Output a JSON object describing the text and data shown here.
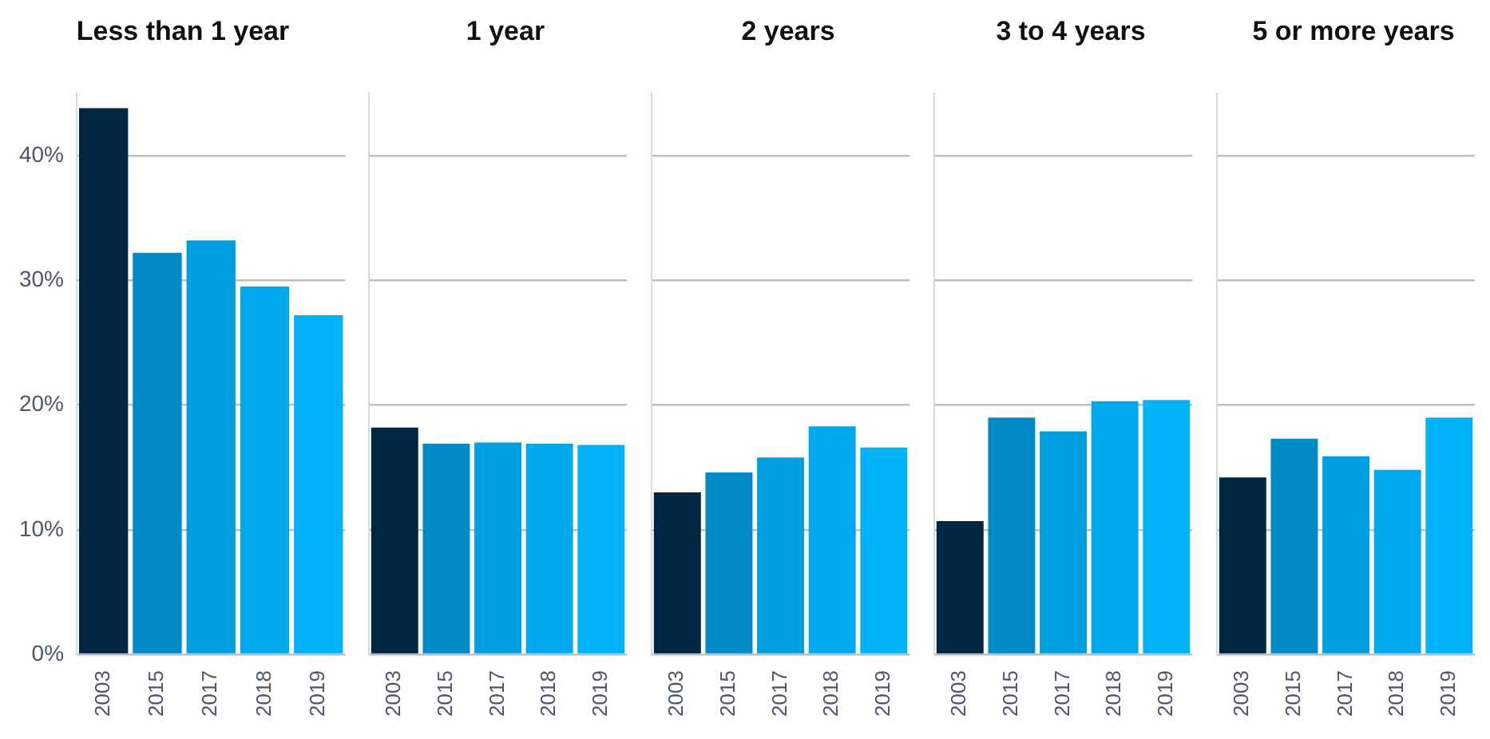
{
  "chart_data": [
    {
      "type": "bar",
      "title": "Less than 1 year",
      "categories": [
        "2003",
        "2015",
        "2017",
        "2018",
        "2019"
      ],
      "values": [
        43.8,
        32.2,
        33.2,
        29.5,
        27.2
      ],
      "colors": [
        "#002642",
        "#008bc7",
        "#00a0e0",
        "#00a8ee",
        "#00b2f8"
      ],
      "ylim": [
        0,
        45
      ],
      "yticks": [
        {
          "value": 0,
          "label": "0%"
        },
        {
          "value": 10,
          "label": "10%"
        },
        {
          "value": 20,
          "label": "20%"
        },
        {
          "value": 30,
          "label": "30%"
        },
        {
          "value": 40,
          "label": "40%"
        }
      ],
      "grid": "y"
    },
    {
      "type": "bar",
      "title": "1 year",
      "categories": [
        "2003",
        "2015",
        "2017",
        "2018",
        "2019"
      ],
      "values": [
        18.2,
        16.9,
        17.0,
        16.9,
        16.8
      ],
      "colors": [
        "#002642",
        "#008bc7",
        "#00a0e0",
        "#00a8ee",
        "#00b2f8"
      ],
      "ylim": [
        0,
        45
      ],
      "yticks": [
        0,
        10,
        20,
        30,
        40
      ],
      "grid": "y",
      "tick_labels": "x"
    },
    {
      "type": "bar",
      "title": "2 years",
      "categories": [
        "2003",
        "2015",
        "2017",
        "2018",
        "2019"
      ],
      "values": [
        13.0,
        14.6,
        15.8,
        18.3,
        16.6
      ],
      "colors": [
        "#002642",
        "#008bc7",
        "#00a0e0",
        "#00a8ee",
        "#00b2f8"
      ],
      "ylim": [
        0,
        45
      ],
      "yticks": [
        0,
        10,
        20,
        30,
        40
      ],
      "grid": "y",
      "tick_labels": "x"
    },
    {
      "type": "bar",
      "title": "3 to 4 years",
      "categories": [
        "2003",
        "2015",
        "2017",
        "2018",
        "2019"
      ],
      "values": [
        10.7,
        19.0,
        17.9,
        20.3,
        20.4
      ],
      "colors": [
        "#002642",
        "#008bc7",
        "#00a0e0",
        "#00a8ee",
        "#00b2f8"
      ],
      "ylim": [
        0,
        45
      ],
      "yticks": [
        0,
        10,
        20,
        30,
        40
      ],
      "grid": "y",
      "tick_labels": "x"
    },
    {
      "type": "bar",
      "title": "5 or more years",
      "categories": [
        "2003",
        "2015",
        "2017",
        "2018",
        "2019"
      ],
      "values": [
        14.2,
        17.3,
        15.9,
        14.8,
        19.0
      ],
      "colors": [
        "#002642",
        "#008bc7",
        "#00a0e0",
        "#00a8ee",
        "#00b2f8"
      ],
      "ylim": [
        0,
        45
      ],
      "yticks": [
        0,
        10,
        20,
        30,
        40
      ],
      "grid": "y",
      "tick_labels": "x"
    }
  ]
}
